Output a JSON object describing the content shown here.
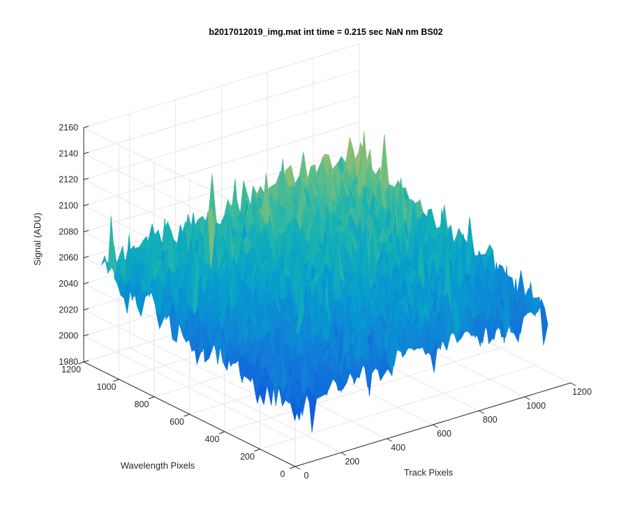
{
  "chart_data": {
    "type": "surface",
    "title": "b2017012019_img.mat int time = 0.215 sec  NaN nm BS02",
    "xlabel": "Track Pixels",
    "ylabel": "Wavelength Pixels",
    "zlabel": "Signal (ADU)",
    "xlim": [
      0,
      1200
    ],
    "ylim": [
      0,
      1200
    ],
    "zlim": [
      1980,
      2160
    ],
    "xticks": [
      0,
      200,
      400,
      600,
      800,
      1000,
      1200
    ],
    "yticks": [
      0,
      200,
      400,
      600,
      800,
      1000,
      1200
    ],
    "zticks": [
      1980,
      2000,
      2020,
      2040,
      2060,
      2080,
      2100,
      2120,
      2140,
      2160
    ],
    "grid": true,
    "colormap": "parula",
    "surface_summary": {
      "x_range": [
        0,
        1100
      ],
      "y_range": [
        0,
        1100
      ],
      "mean_signal": 2045,
      "signal_min_approx": 1985,
      "signal_max_approx": 2145,
      "description_trend": "higher signal toward large track / large wavelength pixels, noisy throughout"
    }
  }
}
